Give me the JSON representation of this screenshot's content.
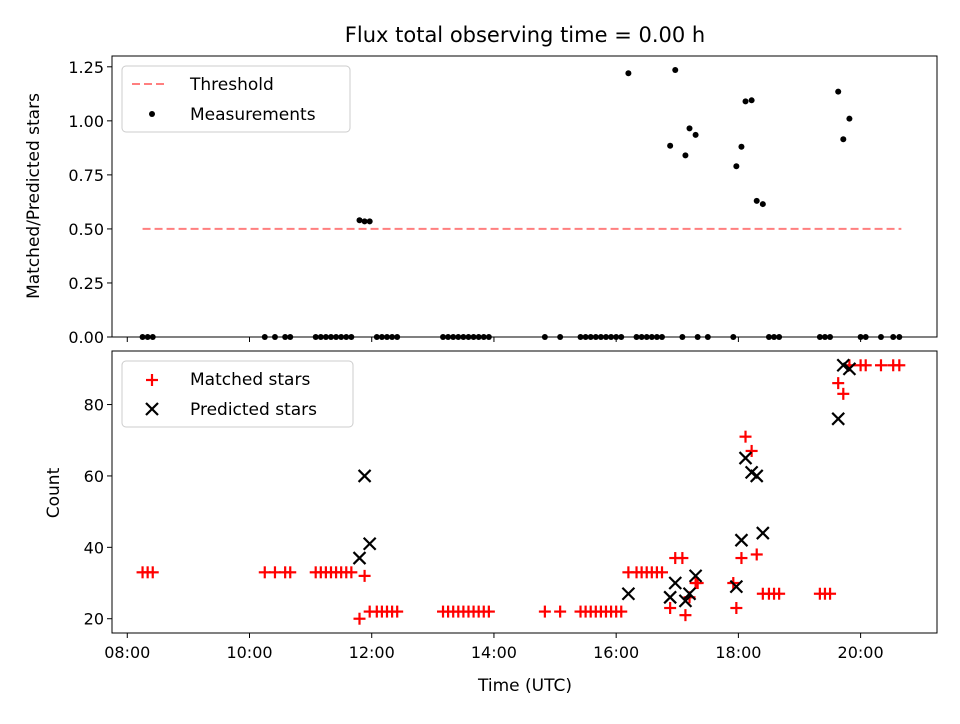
{
  "chart_data": [
    {
      "type": "scatter",
      "title": "Flux total observing time = 0.00 h",
      "xlabel": "",
      "ylabel": "Matched/Predicted stars",
      "ylim": [
        0,
        1.3
      ],
      "xlim": [
        "07:45",
        "21:15"
      ],
      "yticks": [
        "0.00",
        "0.25",
        "0.50",
        "0.75",
        "1.00",
        "1.25"
      ],
      "legend_position": "upper-left",
      "threshold": {
        "name": "Threshold",
        "value": 0.5,
        "x_start": "08:15",
        "x_end": "20:40",
        "color": "#ff7f7f",
        "style": "dashed"
      },
      "series": [
        {
          "name": "Measurements",
          "color": "#000000",
          "marker": "dot",
          "points": [
            [
              "08:15",
              0
            ],
            [
              "08:20",
              0
            ],
            [
              "08:25",
              0
            ],
            [
              "10:15",
              0
            ],
            [
              "10:25",
              0
            ],
            [
              "10:35",
              0
            ],
            [
              "10:40",
              0
            ],
            [
              "11:05",
              0
            ],
            [
              "11:10",
              0
            ],
            [
              "11:15",
              0
            ],
            [
              "11:20",
              0
            ],
            [
              "11:25",
              0
            ],
            [
              "11:30",
              0
            ],
            [
              "11:35",
              0
            ],
            [
              "11:40",
              0
            ],
            [
              "11:48",
              0.54
            ],
            [
              "11:53",
              0.535
            ],
            [
              "11:58",
              0.535
            ],
            [
              "12:05",
              0
            ],
            [
              "12:10",
              0
            ],
            [
              "12:15",
              0
            ],
            [
              "12:20",
              0
            ],
            [
              "12:25",
              0
            ],
            [
              "13:10",
              0
            ],
            [
              "13:15",
              0
            ],
            [
              "13:20",
              0
            ],
            [
              "13:25",
              0
            ],
            [
              "13:30",
              0
            ],
            [
              "13:35",
              0
            ],
            [
              "13:40",
              0
            ],
            [
              "13:45",
              0
            ],
            [
              "13:50",
              0
            ],
            [
              "13:55",
              0
            ],
            [
              "14:50",
              0
            ],
            [
              "15:05",
              0
            ],
            [
              "15:25",
              0
            ],
            [
              "15:30",
              0
            ],
            [
              "15:35",
              0
            ],
            [
              "15:40",
              0
            ],
            [
              "15:45",
              0
            ],
            [
              "15:50",
              0
            ],
            [
              "15:55",
              0
            ],
            [
              "16:00",
              0
            ],
            [
              "16:05",
              0
            ],
            [
              "16:12",
              1.22
            ],
            [
              "16:20",
              0
            ],
            [
              "16:25",
              0
            ],
            [
              "16:30",
              0
            ],
            [
              "16:35",
              0
            ],
            [
              "16:40",
              0
            ],
            [
              "16:45",
              0
            ],
            [
              "16:53",
              0.885
            ],
            [
              "16:58",
              1.235
            ],
            [
              "17:05",
              0
            ],
            [
              "17:08",
              0.84
            ],
            [
              "17:12",
              0.965
            ],
            [
              "17:18",
              0.935
            ],
            [
              "17:20",
              0
            ],
            [
              "17:30",
              0
            ],
            [
              "17:55",
              0
            ],
            [
              "17:58",
              0.79
            ],
            [
              "18:03",
              0.88
            ],
            [
              "18:07",
              1.09
            ],
            [
              "18:13",
              1.095
            ],
            [
              "18:18",
              0.63
            ],
            [
              "18:24",
              0.615
            ],
            [
              "18:30",
              0
            ],
            [
              "18:35",
              0
            ],
            [
              "18:40",
              0
            ],
            [
              "19:20",
              0
            ],
            [
              "19:25",
              0
            ],
            [
              "19:30",
              0
            ],
            [
              "19:38",
              1.135
            ],
            [
              "19:43",
              0.915
            ],
            [
              "19:49",
              1.01
            ],
            [
              "20:00",
              0
            ],
            [
              "20:05",
              0
            ],
            [
              "20:20",
              0
            ],
            [
              "20:32",
              0
            ],
            [
              "20:38",
              0
            ]
          ]
        }
      ]
    },
    {
      "type": "scatter",
      "title": "",
      "xlabel": "Time (UTC)",
      "ylabel": "Count",
      "ylim": [
        16,
        95
      ],
      "xlim": [
        "07:45",
        "21:15"
      ],
      "yticks": [
        "20",
        "40",
        "60",
        "80"
      ],
      "xticks": [
        "08:00",
        "10:00",
        "12:00",
        "14:00",
        "16:00",
        "18:00",
        "20:00"
      ],
      "legend_position": "upper-left",
      "series": [
        {
          "name": "Matched stars",
          "color": "#ff0000",
          "marker": "plus",
          "points": [
            [
              "08:15",
              33
            ],
            [
              "08:20",
              33
            ],
            [
              "08:25",
              33
            ],
            [
              "10:15",
              33
            ],
            [
              "10:25",
              33
            ],
            [
              "10:35",
              33
            ],
            [
              "10:40",
              33
            ],
            [
              "11:05",
              33
            ],
            [
              "11:10",
              33
            ],
            [
              "11:15",
              33
            ],
            [
              "11:20",
              33
            ],
            [
              "11:25",
              33
            ],
            [
              "11:30",
              33
            ],
            [
              "11:35",
              33
            ],
            [
              "11:40",
              33
            ],
            [
              "11:48",
              20
            ],
            [
              "11:53",
              32
            ],
            [
              "11:58",
              22
            ],
            [
              "12:05",
              22
            ],
            [
              "12:10",
              22
            ],
            [
              "12:15",
              22
            ],
            [
              "12:20",
              22
            ],
            [
              "12:25",
              22
            ],
            [
              "13:10",
              22
            ],
            [
              "13:15",
              22
            ],
            [
              "13:20",
              22
            ],
            [
              "13:25",
              22
            ],
            [
              "13:30",
              22
            ],
            [
              "13:35",
              22
            ],
            [
              "13:40",
              22
            ],
            [
              "13:45",
              22
            ],
            [
              "13:50",
              22
            ],
            [
              "13:55",
              22
            ],
            [
              "14:50",
              22
            ],
            [
              "15:05",
              22
            ],
            [
              "15:25",
              22
            ],
            [
              "15:30",
              22
            ],
            [
              "15:35",
              22
            ],
            [
              "15:40",
              22
            ],
            [
              "15:45",
              22
            ],
            [
              "15:50",
              22
            ],
            [
              "15:55",
              22
            ],
            [
              "16:00",
              22
            ],
            [
              "16:05",
              22
            ],
            [
              "16:12",
              33
            ],
            [
              "16:20",
              33
            ],
            [
              "16:25",
              33
            ],
            [
              "16:30",
              33
            ],
            [
              "16:35",
              33
            ],
            [
              "16:40",
              33
            ],
            [
              "16:45",
              33
            ],
            [
              "16:53",
              23
            ],
            [
              "16:58",
              37
            ],
            [
              "17:05",
              37
            ],
            [
              "17:08",
              21
            ],
            [
              "17:12",
              26
            ],
            [
              "17:18",
              30
            ],
            [
              "17:20",
              30
            ],
            [
              "17:55",
              30
            ],
            [
              "17:58",
              23
            ],
            [
              "18:03",
              37
            ],
            [
              "18:07",
              71
            ],
            [
              "18:13",
              67
            ],
            [
              "18:18",
              38
            ],
            [
              "18:24",
              27
            ],
            [
              "18:30",
              27
            ],
            [
              "18:35",
              27
            ],
            [
              "18:40",
              27
            ],
            [
              "19:20",
              27
            ],
            [
              "19:25",
              27
            ],
            [
              "19:30",
              27
            ],
            [
              "19:38",
              86
            ],
            [
              "19:43",
              83
            ],
            [
              "19:49",
              91
            ],
            [
              "20:00",
              91
            ],
            [
              "20:05",
              91
            ],
            [
              "20:20",
              91
            ],
            [
              "20:32",
              91
            ],
            [
              "20:38",
              91
            ]
          ]
        },
        {
          "name": "Predicted stars",
          "color": "#000000",
          "marker": "x",
          "points": [
            [
              "11:48",
              37
            ],
            [
              "11:53",
              60
            ],
            [
              "11:58",
              41
            ],
            [
              "16:12",
              27
            ],
            [
              "16:53",
              26
            ],
            [
              "16:58",
              30
            ],
            [
              "17:08",
              25
            ],
            [
              "17:12",
              27
            ],
            [
              "17:18",
              32
            ],
            [
              "17:58",
              29
            ],
            [
              "18:03",
              42
            ],
            [
              "18:07",
              65
            ],
            [
              "18:13",
              61
            ],
            [
              "18:18",
              60
            ],
            [
              "18:24",
              44
            ],
            [
              "19:38",
              76
            ],
            [
              "19:43",
              91
            ],
            [
              "19:49",
              90
            ]
          ]
        }
      ]
    }
  ]
}
